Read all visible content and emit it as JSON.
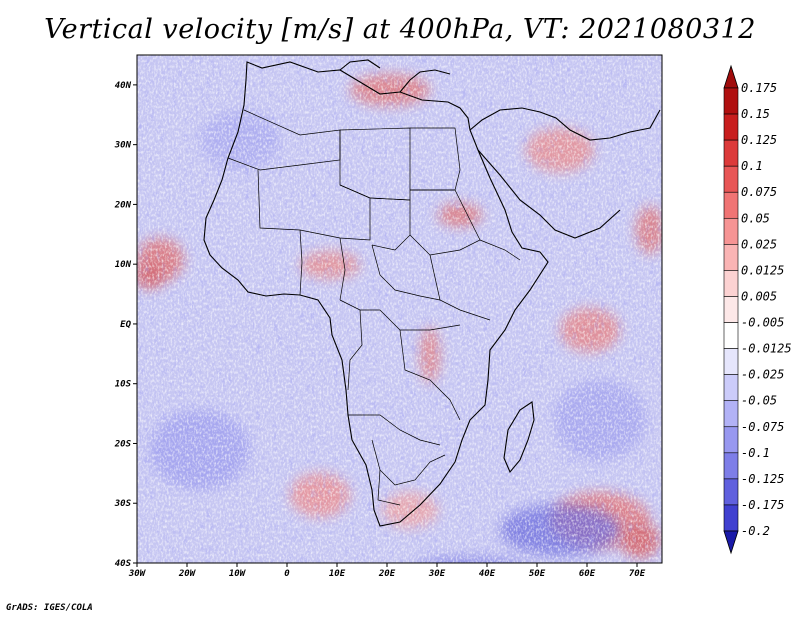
{
  "title": "Vertical velocity [m/s] at 400hPa, VT: 2021080312",
  "credit": "GrADS: IGES/COLA",
  "map": {
    "lon_range": [
      -30,
      75
    ],
    "lat_range": [
      -40,
      45
    ],
    "lon_ticks": [
      {
        "value": -30,
        "label": "30W"
      },
      {
        "value": -20,
        "label": "20W"
      },
      {
        "value": -10,
        "label": "10W"
      },
      {
        "value": 0,
        "label": "0"
      },
      {
        "value": 10,
        "label": "10E"
      },
      {
        "value": 20,
        "label": "20E"
      },
      {
        "value": 30,
        "label": "30E"
      },
      {
        "value": 40,
        "label": "40E"
      },
      {
        "value": 50,
        "label": "50E"
      },
      {
        "value": 60,
        "label": "60E"
      },
      {
        "value": 70,
        "label": "70E"
      }
    ],
    "lat_ticks": [
      {
        "value": 40,
        "label": "40N"
      },
      {
        "value": 30,
        "label": "30N"
      },
      {
        "value": 20,
        "label": "20N"
      },
      {
        "value": 10,
        "label": "10N"
      },
      {
        "value": 0,
        "label": "EQ"
      },
      {
        "value": -10,
        "label": "10S"
      },
      {
        "value": -20,
        "label": "20S"
      },
      {
        "value": -30,
        "label": "30S"
      },
      {
        "value": -40,
        "label": "40S"
      }
    ]
  },
  "colorbar": {
    "levels": [
      {
        "label": "0.175",
        "color": "#b01010"
      },
      {
        "label": "0.15",
        "color": "#c81e1e"
      },
      {
        "label": "0.125",
        "color": "#dc3a3a"
      },
      {
        "label": "0.1",
        "color": "#e85656"
      },
      {
        "label": "0.075",
        "color": "#f07474"
      },
      {
        "label": "0.05",
        "color": "#f69494"
      },
      {
        "label": "0.025",
        "color": "#fab4b4"
      },
      {
        "label": "0.0125",
        "color": "#fcd2d2"
      },
      {
        "label": "0.005",
        "color": "#fde8e8"
      },
      {
        "label": "-0.005",
        "color": "#ffffff"
      },
      {
        "label": "-0.0125",
        "color": "#e6e6fc"
      },
      {
        "label": "-0.025",
        "color": "#ccccfa"
      },
      {
        "label": "-0.05",
        "color": "#b2b2f6"
      },
      {
        "label": "-0.075",
        "color": "#9898f0"
      },
      {
        "label": "-0.1",
        "color": "#7e7ee8"
      },
      {
        "label": "-0.125",
        "color": "#6060de"
      },
      {
        "label": "-0.175",
        "color": "#4040d0"
      },
      {
        "label": "-0.2",
        "color": "#2222c0"
      }
    ],
    "top_color": "#a00c0c",
    "bottom_color": "#1a1aa8"
  },
  "colors": {
    "ascent_red": "#e06060",
    "descent_blue": "#8080e8",
    "background_neutral": "#c8c8f4"
  }
}
